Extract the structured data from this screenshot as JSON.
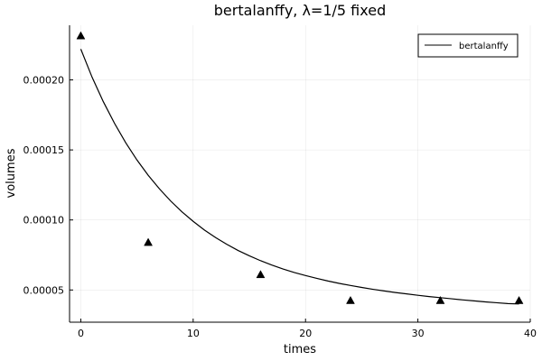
{
  "chart_data": {
    "type": "line",
    "title": "bertalanffy, λ=1/5 fixed",
    "xlabel": "times",
    "ylabel": "volumes",
    "xlim": [
      -1,
      40
    ],
    "ylim": [
      2.7e-05,
      0.000239
    ],
    "xticks": [
      0,
      10,
      20,
      30,
      40
    ],
    "xtick_labels": [
      "0",
      "10",
      "20",
      "30",
      "40"
    ],
    "yticks": [
      5e-05,
      0.0001,
      0.00015,
      0.0002
    ],
    "ytick_labels": [
      "0.00005",
      "0.00010",
      "0.00015",
      "0.00020"
    ],
    "grid": true,
    "legend_position": "top-right",
    "series": [
      {
        "name": "bertalanffy",
        "kind": "line",
        "x": [
          0,
          1,
          2,
          3,
          4,
          5,
          6,
          7,
          8,
          9,
          10,
          11,
          12,
          13,
          14,
          15,
          16,
          17,
          18,
          19,
          20,
          21,
          22,
          23,
          24,
          25,
          26,
          27,
          28,
          29,
          30,
          31,
          32,
          33,
          34,
          35,
          36,
          37,
          38,
          39
        ],
        "y": [
          0.000222,
          0.000202,
          0.0001845,
          0.000169,
          0.0001551,
          0.0001428,
          0.0001319,
          0.0001222,
          0.0001135,
          0.0001058,
          9.9e-05,
          9.28e-05,
          8.74e-05,
          8.26e-05,
          7.82e-05,
          7.44e-05,
          7.09e-05,
          6.78e-05,
          6.5e-05,
          6.25e-05,
          6.03e-05,
          5.83e-05,
          5.64e-05,
          5.47e-05,
          5.32e-05,
          5.18e-05,
          5.05e-05,
          4.93e-05,
          4.82e-05,
          4.72e-05,
          4.62e-05,
          4.53e-05,
          4.45e-05,
          4.37e-05,
          4.29e-05,
          4.22e-05,
          4.15e-05,
          4.09e-05,
          4.03e-05,
          4e-05
        ],
        "color": "#000000"
      },
      {
        "kind": "scatter",
        "marker": "triangle",
        "x": [
          0,
          6,
          16,
          24,
          32,
          39
        ],
        "y": [
          0.0002315,
          8.4e-05,
          6.1e-05,
          4.25e-05,
          4.25e-05,
          4.25e-05
        ],
        "color": "#000000"
      }
    ]
  }
}
